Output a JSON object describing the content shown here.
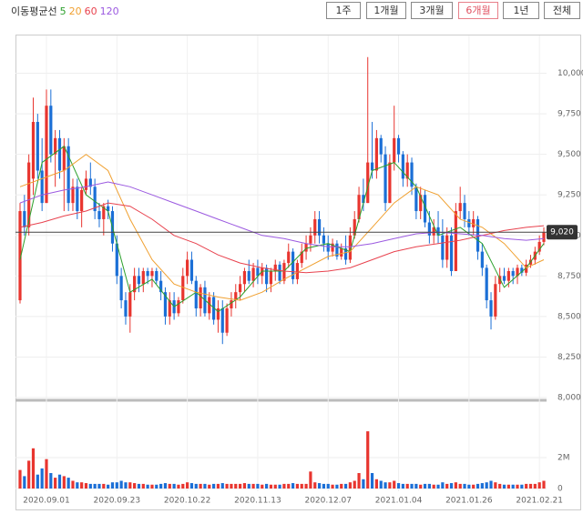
{
  "chart_data": {
    "type": "candlestick",
    "legend_title": "이동평균선",
    "periods": [
      "1주",
      "1개월",
      "3개월",
      "6개월",
      "1년",
      "전체"
    ],
    "active_period": 3,
    "categories": [
      null,
      null,
      null,
      null,
      null,
      null,
      "2020.09.01",
      null,
      null,
      null,
      null,
      null,
      null,
      null,
      null,
      null,
      null,
      null,
      null,
      null,
      null,
      null,
      "2020.09.23",
      null,
      null,
      null,
      null,
      null,
      null,
      null,
      null,
      null,
      null,
      null,
      null,
      null,
      null,
      null,
      "2020.10.22",
      null,
      null,
      null,
      null,
      null,
      null,
      null,
      null,
      null,
      null,
      null,
      null,
      null,
      null,
      null,
      "2020.11.13",
      null,
      null,
      null,
      null,
      null,
      null,
      null,
      null,
      null,
      null,
      null,
      null,
      null,
      null,
      null,
      "2020.12.07",
      null,
      null,
      null,
      null,
      null,
      null,
      null,
      null,
      null,
      null,
      null,
      null,
      null,
      null,
      null,
      "2021.01.04",
      null,
      null,
      null,
      null,
      null,
      null,
      null,
      null,
      null,
      null,
      null,
      null,
      null,
      null,
      null,
      "2021.01.26",
      null,
      null,
      null,
      null,
      null,
      null,
      null,
      null,
      null,
      null,
      null,
      null,
      null,
      null,
      null,
      "2021.02.21",
      null
    ],
    "open": [
      8600,
      9150,
      9050,
      9350,
      9700,
      9400,
      9200,
      9800,
      9500,
      9600,
      9400,
      9550,
      9200,
      9300,
      9150,
      9280,
      9350,
      9300,
      9150,
      9100,
      9180,
      9150,
      8950,
      8750,
      8600,
      8500,
      8650,
      8750,
      8700,
      8780,
      8750,
      8780,
      8720,
      8650,
      8500,
      8600,
      8520,
      8600,
      8750,
      8850,
      8720,
      8550,
      8680,
      8520,
      8620,
      8480,
      8550,
      8400,
      8550,
      8600,
      8650,
      8700,
      8780,
      8720,
      8800,
      8750,
      8800,
      8700,
      8780,
      8820,
      8720,
      8830,
      8900,
      8730,
      8830,
      8900,
      8950,
      9000,
      9100,
      9000,
      8950,
      8900,
      8950,
      8870,
      8920,
      8850,
      9000,
      9100,
      9250,
      9200,
      9450,
      9400,
      9600,
      9500,
      9200,
      9450,
      9600,
      9500,
      9350,
      9450,
      9300,
      9150,
      9250,
      9080,
      9000,
      9050,
      9000,
      8850,
      9000,
      8780,
      9150,
      9200,
      9100,
      9050,
      9100,
      8900,
      8800,
      8600,
      8500,
      8700,
      8750,
      8720,
      8780,
      8750,
      8800,
      8770,
      8820,
      8850,
      8900,
      8960
    ],
    "high": [
      9200,
      9250,
      9500,
      9850,
      9750,
      9600,
      9900,
      9900,
      9650,
      9650,
      9600,
      9600,
      9350,
      9350,
      9300,
      9400,
      9450,
      9350,
      9200,
      9200,
      9220,
      9180,
      9000,
      8800,
      8650,
      8700,
      8800,
      8800,
      8800,
      8800,
      8800,
      8800,
      8780,
      8680,
      8650,
      8650,
      8620,
      8800,
      8900,
      8900,
      8750,
      8700,
      8720,
      8650,
      8650,
      8600,
      8600,
      8580,
      8650,
      8700,
      8750,
      8800,
      8850,
      8830,
      8850,
      8830,
      8820,
      8800,
      8850,
      8840,
      8850,
      8950,
      8920,
      8850,
      8950,
      9000,
      9050,
      9150,
      9150,
      9050,
      9000,
      8980,
      8970,
      8950,
      9000,
      9050,
      9150,
      9300,
      9350,
      10100,
      9700,
      9650,
      9620,
      9550,
      9500,
      9800,
      9620,
      9520,
      9500,
      9480,
      9320,
      9300,
      9280,
      9150,
      9100,
      9150,
      9100,
      9050,
      9050,
      9200,
      9300,
      9250,
      9150,
      9150,
      9120,
      8950,
      8820,
      8650,
      8750,
      8800,
      8800,
      8800,
      8800,
      8820,
      8820,
      8850,
      8880,
      8930,
      9000,
      9050
    ],
    "low": [
      8580,
      9000,
      9000,
      9250,
      9350,
      9150,
      9200,
      9450,
      9300,
      9350,
      9150,
      9150,
      9150,
      9100,
      9050,
      9250,
      9250,
      9100,
      9050,
      9000,
      9100,
      8900,
      8700,
      8550,
      8450,
      8400,
      8600,
      8650,
      8650,
      8700,
      8680,
      8700,
      8600,
      8450,
      8450,
      8480,
      8500,
      8580,
      8700,
      8700,
      8500,
      8500,
      8500,
      8480,
      8450,
      8400,
      8330,
      8380,
      8500,
      8550,
      8600,
      8650,
      8700,
      8680,
      8700,
      8700,
      8650,
      8650,
      8720,
      8700,
      8700,
      8800,
      8700,
      8700,
      8800,
      8850,
      8900,
      8950,
      8950,
      8900,
      8850,
      8870,
      8850,
      8850,
      8820,
      8830,
      8980,
      9080,
      9150,
      9200,
      9350,
      9350,
      9450,
      9150,
      9200,
      9400,
      9450,
      9300,
      9300,
      9250,
      9100,
      9100,
      9050,
      8950,
      8950,
      8950,
      8800,
      8800,
      8750,
      8780,
      9100,
      9050,
      9000,
      9000,
      8850,
      8750,
      8550,
      8420,
      8480,
      8650,
      8700,
      8680,
      8700,
      8700,
      8750,
      8750,
      8800,
      8820,
      8880,
      8940
    ],
    "close": [
      9150,
      9050,
      9450,
      9700,
      9400,
      9200,
      9800,
      9500,
      9600,
      9400,
      9550,
      9200,
      9300,
      9150,
      9280,
      9350,
      9300,
      9150,
      9100,
      9180,
      9150,
      8950,
      8750,
      8600,
      8500,
      8650,
      8750,
      8700,
      8780,
      8750,
      8780,
      8720,
      8650,
      8500,
      8600,
      8520,
      8600,
      8750,
      8850,
      8720,
      8550,
      8680,
      8520,
      8620,
      8480,
      8550,
      8400,
      8550,
      8600,
      8650,
      8700,
      8780,
      8720,
      8800,
      8750,
      8800,
      8700,
      8780,
      8820,
      8720,
      8830,
      8900,
      8730,
      8830,
      8900,
      8950,
      9000,
      9100,
      9000,
      8950,
      8900,
      8950,
      8870,
      8920,
      8850,
      9000,
      9100,
      9250,
      9200,
      9450,
      9400,
      9600,
      9500,
      9200,
      9450,
      9600,
      9500,
      9350,
      9450,
      9300,
      9150,
      9250,
      9080,
      9000,
      9050,
      9000,
      8850,
      9000,
      8780,
      9150,
      9200,
      9100,
      9050,
      9100,
      8900,
      8800,
      8600,
      8500,
      8700,
      8750,
      8720,
      8780,
      8750,
      8800,
      8770,
      8820,
      8850,
      8900,
      8960,
      9020
    ],
    "volume": [
      1200000,
      800000,
      1800000,
      2600000,
      900000,
      1300000,
      1900000,
      1000000,
      700000,
      900000,
      800000,
      700000,
      500000,
      400000,
      400000,
      350000,
      300000,
      300000,
      300000,
      300000,
      250000,
      400000,
      400000,
      500000,
      400000,
      400000,
      350000,
      300000,
      300000,
      250000,
      250000,
      250000,
      300000,
      350000,
      300000,
      300000,
      250000,
      300000,
      400000,
      350000,
      300000,
      300000,
      300000,
      250000,
      300000,
      300000,
      350000,
      300000,
      300000,
      300000,
      300000,
      350000,
      300000,
      300000,
      300000,
      250000,
      300000,
      250000,
      250000,
      250000,
      300000,
      300000,
      350000,
      300000,
      300000,
      300000,
      1100000,
      400000,
      350000,
      300000,
      300000,
      250000,
      250000,
      300000,
      300000,
      400000,
      500000,
      1000000,
      600000,
      3700000,
      1000000,
      600000,
      500000,
      400000,
      400000,
      500000,
      350000,
      300000,
      300000,
      300000,
      300000,
      250000,
      300000,
      300000,
      250000,
      250000,
      400000,
      300000,
      350000,
      400000,
      300000,
      300000,
      250000,
      250000,
      300000,
      350000,
      400000,
      500000,
      400000,
      300000,
      250000,
      250000,
      250000,
      250000,
      250000,
      300000,
      300000,
      300000,
      400000,
      500000
    ],
    "up_color": "#e8352f",
    "down_color": "#1b6fd6",
    "series": [
      {
        "name": "5",
        "color": "#2ca02c",
        "x": [
          0,
          5,
          10,
          15,
          20,
          25,
          30,
          35,
          40,
          45,
          50,
          55,
          60,
          65,
          70,
          75,
          80,
          85,
          90,
          95,
          100,
          105,
          110,
          115,
          119
        ],
        "values": [
          8850,
          9450,
          9550,
          9250,
          9150,
          8650,
          8730,
          8560,
          8650,
          8530,
          8620,
          8780,
          8780,
          8920,
          8950,
          8900,
          9400,
          9450,
          9300,
          9000,
          9050,
          8950,
          8680,
          8800,
          8950
        ]
      },
      {
        "name": "20",
        "color": "#f0a030",
        "x": [
          0,
          5,
          10,
          15,
          20,
          25,
          30,
          35,
          40,
          45,
          50,
          55,
          60,
          65,
          70,
          75,
          80,
          85,
          90,
          95,
          100,
          105,
          110,
          115,
          119
        ],
        "values": [
          9300,
          9350,
          9400,
          9500,
          9400,
          9100,
          8850,
          8700,
          8650,
          8620,
          8600,
          8650,
          8730,
          8800,
          8870,
          8900,
          9050,
          9200,
          9300,
          9250,
          9100,
          9050,
          8950,
          8800,
          8850
        ]
      },
      {
        "name": "60",
        "color": "#e8424e",
        "x": [
          0,
          5,
          10,
          15,
          20,
          25,
          30,
          35,
          40,
          45,
          50,
          55,
          60,
          65,
          70,
          75,
          80,
          85,
          90,
          95,
          100,
          105,
          110,
          115,
          119
        ],
        "values": [
          9050,
          9080,
          9120,
          9150,
          9200,
          9180,
          9100,
          9000,
          8950,
          8880,
          8830,
          8800,
          8780,
          8770,
          8780,
          8800,
          8850,
          8900,
          8930,
          8950,
          8970,
          9000,
          9030,
          9050,
          9060
        ]
      },
      {
        "name": "120",
        "color": "#9b59e0",
        "x": [
          0,
          5,
          10,
          15,
          20,
          25,
          30,
          35,
          40,
          45,
          50,
          55,
          60,
          65,
          70,
          75,
          80,
          85,
          90,
          95,
          100,
          105,
          110,
          115,
          119
        ],
        "values": [
          9200,
          9250,
          9280,
          9300,
          9330,
          9300,
          9250,
          9200,
          9150,
          9100,
          9050,
          9000,
          8980,
          8950,
          8930,
          8930,
          8950,
          8980,
          9010,
          9020,
          9010,
          9000,
          8980,
          8970,
          8980
        ]
      }
    ],
    "current_price": {
      "value": 9020,
      "label": "9,020"
    },
    "ylim": [
      8000,
      10250
    ],
    "yticks": [
      {
        "value": 8000,
        "label": "8,000"
      },
      {
        "value": 8250,
        "label": "8,250"
      },
      {
        "value": 8500,
        "label": "8,500"
      },
      {
        "value": 8750,
        "label": "8,750"
      },
      {
        "value": 9000,
        "label": "9,000"
      },
      {
        "value": 9250,
        "label": "9,250"
      },
      {
        "value": 9500,
        "label": "9,500"
      },
      {
        "value": 9750,
        "label": "9,750"
      },
      {
        "value": 10000,
        "label": "10,000"
      }
    ],
    "volume_ylim": [
      0,
      4000000
    ],
    "volume_ticks": [
      0,
      {
        "value": 2000000,
        "label": "2M"
      }
    ],
    "grid": true
  }
}
